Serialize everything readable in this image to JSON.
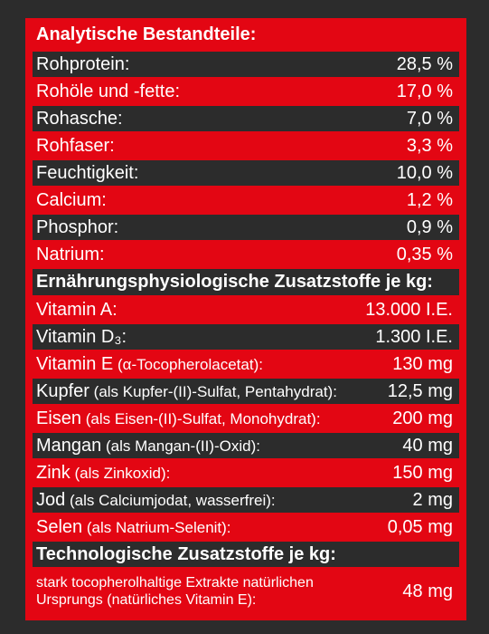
{
  "heading_analytical": "Analytische Bestandteile:",
  "analytical": [
    {
      "label": "Rohprotein:",
      "value": "28,5 %"
    },
    {
      "label": "Rohöle und -fette:",
      "value": "17,0 %"
    },
    {
      "label": "Rohasche:",
      "value": "7,0 %"
    },
    {
      "label": "Rohfaser:",
      "value": "3,3 %"
    },
    {
      "label": "Feuchtigkeit:",
      "value": "10,0 %"
    },
    {
      "label": "Calcium:",
      "value": "1,2 %"
    },
    {
      "label": "Phosphor:",
      "value": "0,9 %"
    },
    {
      "label": "Natrium:",
      "value": "0,35 %"
    }
  ],
  "heading_nutritional": "Ernährungsphysiologische Zusatzstoffe je kg:",
  "nutritional": [
    {
      "label": "Vitamin A:",
      "detail": "",
      "value": "13.000 I.E."
    },
    {
      "label": "Vitamin D₃:",
      "detail": "",
      "value": "1.300 I.E."
    },
    {
      "label": "Vitamin E",
      "detail": " (α-Tocopherolacetat):",
      "value": "130 mg"
    },
    {
      "label": "Kupfer",
      "detail": " (als Kupfer-(II)-Sulfat, Pentahydrat):",
      "value": "12,5 mg"
    },
    {
      "label": "Eisen",
      "detail": " (als Eisen-(II)-Sulfat, Monohydrat):",
      "value": "200 mg"
    },
    {
      "label": "Mangan",
      "detail": " (als Mangan-(II)-Oxid):",
      "value": "40 mg"
    },
    {
      "label": "Zink",
      "detail": " (als Zinkoxid):",
      "value": "150 mg"
    },
    {
      "label": "Jod",
      "detail": " (als Calciumjodat, wasserfrei):",
      "value": "2 mg"
    },
    {
      "label": "Selen",
      "detail": " (als Natrium-Selenit):",
      "value": "0,05 mg"
    }
  ],
  "heading_technological": "Technologische Zusatzstoffe je kg:",
  "technological": {
    "label": "stark tocopherolhaltige Extrakte natürlichen Ursprungs (natürliches Vitamin E):",
    "value": "48 mg"
  },
  "colors": {
    "red": "#e30613",
    "dark": "#2c2c2c",
    "text": "#ffffff"
  }
}
